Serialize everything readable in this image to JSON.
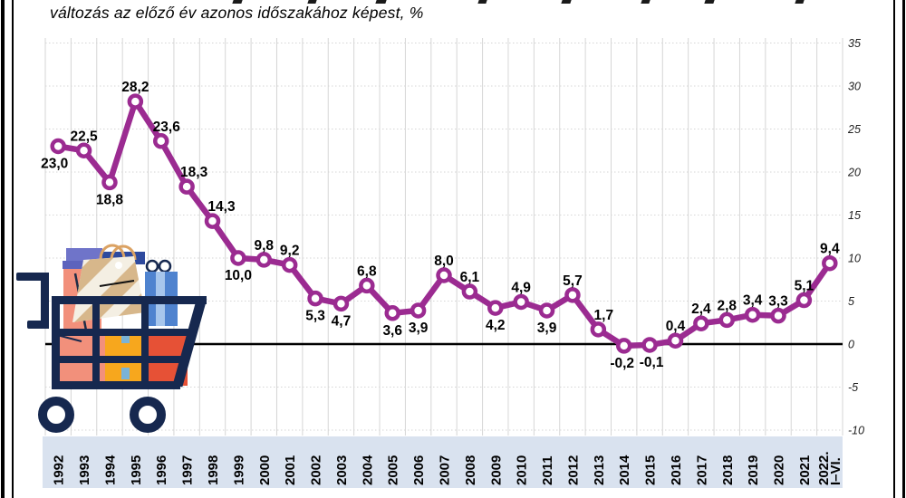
{
  "header": {
    "subtitle": "változás az előző év azonos időszakához képest, %"
  },
  "chart_data": {
    "type": "line",
    "subtitle": "változás az előző év azonos időszakához képest, %",
    "unit": "%",
    "categories": [
      "1992",
      "1993",
      "1994",
      "1995",
      "1996",
      "1997",
      "1998",
      "1999",
      "2000",
      "2001",
      "2002",
      "2003",
      "2004",
      "2005",
      "2006",
      "2007",
      "2008",
      "2009",
      "2010",
      "2011",
      "2012",
      "2013",
      "2014",
      "2015",
      "2016",
      "2017",
      "2018",
      "2019",
      "2020",
      "2021",
      "2022.\nI–VI."
    ],
    "series": [
      {
        "name": "fogyasztoi-ar-valtozas",
        "values": [
          23.0,
          22.5,
          18.8,
          28.2,
          23.6,
          18.3,
          14.3,
          10.0,
          9.8,
          9.2,
          5.3,
          4.7,
          6.8,
          3.6,
          3.9,
          8.0,
          6.1,
          4.2,
          4.9,
          3.9,
          5.7,
          1.7,
          -0.2,
          -0.1,
          0.4,
          2.4,
          2.8,
          3.4,
          3.3,
          5.1,
          9.4
        ],
        "labels": [
          "23,0",
          "22,5",
          "18,8",
          "28,2",
          "23,6",
          "18,3",
          "14,3",
          "10,0",
          "9,8",
          "9,2",
          "5,3",
          "4,7",
          "6,8",
          "3,6",
          "3,9",
          "8,0",
          "6,1",
          "4,2",
          "4,9",
          "3,9",
          "5,7",
          "1,7",
          "-0,2",
          "-0,1",
          "0,4",
          "2,4",
          "2,8",
          "3,4",
          "3,3",
          "5,1",
          "9,4"
        ],
        "label_side": [
          "below",
          "above",
          "below",
          "above",
          "above",
          "above",
          "above",
          "below",
          "above",
          "above",
          "below",
          "below",
          "above",
          "below",
          "below",
          "above",
          "above",
          "below",
          "above",
          "below",
          "above",
          "above",
          "below",
          "below",
          "above",
          "above",
          "above",
          "above",
          "above",
          "above",
          "above"
        ],
        "label_dx": [
          -4,
          0,
          0,
          0,
          6,
          8,
          10,
          0,
          0,
          0,
          0,
          0,
          0,
          0,
          0,
          0,
          0,
          0,
          0,
          0,
          0,
          6,
          -2,
          2,
          0,
          0,
          0,
          0,
          0,
          0,
          0
        ]
      }
    ],
    "yticks": [
      35,
      30,
      25,
      20,
      15,
      10,
      5,
      0,
      -5,
      -10
    ],
    "ytick_labels": [
      "35",
      "30",
      "25",
      "20",
      "15",
      "10",
      "5",
      "0",
      "-5",
      "-10"
    ],
    "ylim": [
      -10,
      35
    ],
    "grid": true,
    "legend": "none",
    "colors": {
      "line": "#9b2b91",
      "marker_fill": "#ffffff",
      "zero_line": "#000000",
      "grid_line": "#d6d6d6",
      "x_band": "#d9e2ef",
      "label_text": "#000000",
      "ytick_text": "#222222"
    }
  },
  "illustration": {
    "name": "shopping cart filled with gift boxes and striped shopping bag",
    "colors": {
      "cart": "#16284f",
      "salmon": "#f2907b",
      "red": "#e65136",
      "yellow": "#f7a71d",
      "tape": "#7ab3d6",
      "periwinkle": "#6f74c9",
      "periwinkle_dark": "#5d63bd",
      "navy_box": "#2e4a9e",
      "blue": "#4f83cf",
      "ribbon": "#a7c6ec",
      "tan": "#d7b78b",
      "cream": "#f4efe3",
      "rope": "#dba263"
    }
  }
}
